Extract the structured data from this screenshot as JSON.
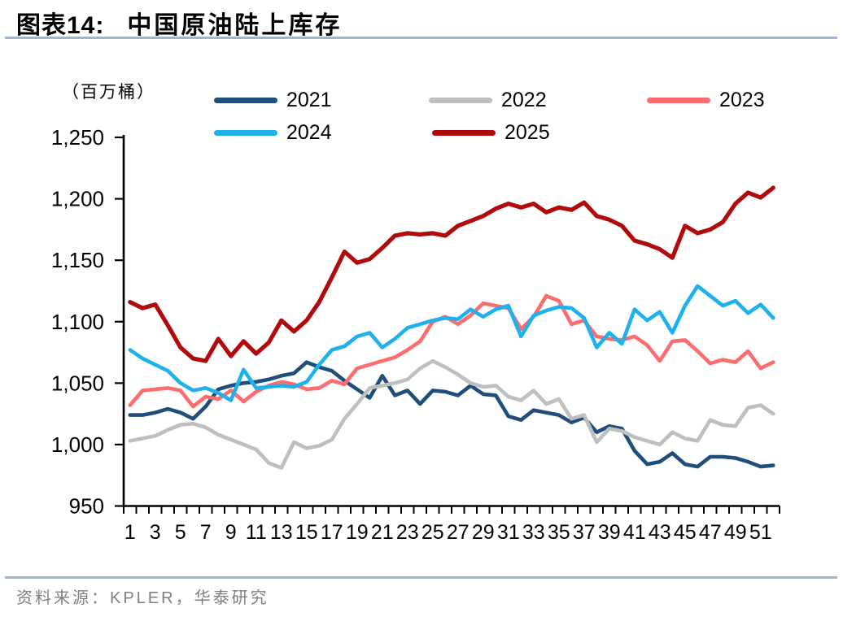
{
  "header": {
    "figure_label": "图表14:",
    "title": "中国原油陆上库存"
  },
  "footer": {
    "source": "资料来源：KPLER，华泰研究"
  },
  "colors": {
    "divider": "#9EB6D6",
    "source_text": "#7F7F7F",
    "axis": "#000000"
  },
  "chart_data": {
    "type": "line",
    "title": "中国原油陆上库存",
    "unit_label": "（百万桶）",
    "xlabel": "",
    "ylabel": "",
    "ylim": [
      950,
      1250
    ],
    "grid": "off",
    "legend_position": "top",
    "y_ticks": [
      950,
      1000,
      1050,
      1100,
      1150,
      1200,
      1250
    ],
    "y_tick_labels": [
      "950",
      "1,000",
      "1,050",
      "1,100",
      "1,150",
      "1,200",
      "1,250"
    ],
    "x": [
      1,
      2,
      3,
      4,
      5,
      6,
      7,
      8,
      9,
      10,
      11,
      12,
      13,
      14,
      15,
      16,
      17,
      18,
      19,
      20,
      21,
      22,
      23,
      24,
      25,
      26,
      27,
      28,
      29,
      30,
      31,
      32,
      33,
      34,
      35,
      36,
      37,
      38,
      39,
      40,
      41,
      42,
      43,
      44,
      45,
      46,
      47,
      48,
      49,
      50,
      51,
      52
    ],
    "x_tick_labels": [
      "1",
      "3",
      "5",
      "7",
      "9",
      "11",
      "13",
      "15",
      "17",
      "19",
      "21",
      "23",
      "25",
      "27",
      "29",
      "31",
      "33",
      "35",
      "37",
      "39",
      "41",
      "43",
      "45",
      "47",
      "49",
      "51"
    ],
    "series": [
      {
        "name": "2021",
        "color": "#1E4E79",
        "values": [
          1024,
          1024,
          1026,
          1029,
          1026,
          1021,
          1031,
          1045,
          1048,
          1050,
          1051,
          1053,
          1056,
          1058,
          1067,
          1063,
          1060,
          1052,
          1045,
          1038,
          1056,
          1040,
          1044,
          1033,
          1044,
          1043,
          1040,
          1048,
          1041,
          1040,
          1023,
          1020,
          1028,
          1026,
          1024,
          1018,
          1022,
          1010,
          1015,
          1013,
          995,
          984,
          986,
          993,
          984,
          982,
          990,
          990,
          989,
          986,
          982,
          983
        ]
      },
      {
        "name": "2022",
        "color": "#BFBFBF",
        "values": [
          1003,
          1005,
          1007,
          1012,
          1016,
          1017,
          1014,
          1008,
          1004,
          1000,
          996,
          985,
          981,
          1002,
          997,
          999,
          1004,
          1021,
          1033,
          1046,
          1048,
          1050,
          1053,
          1062,
          1068,
          1063,
          1057,
          1050,
          1047,
          1048,
          1039,
          1036,
          1044,
          1033,
          1037,
          1021,
          1024,
          1002,
          1013,
          1011,
          1006,
          1003,
          1000,
          1010,
          1005,
          1003,
          1020,
          1016,
          1015,
          1030,
          1032,
          1025
        ]
      },
      {
        "name": "2023",
        "color": "#FB6D6F",
        "values": [
          1032,
          1044,
          1045,
          1046,
          1044,
          1031,
          1039,
          1037,
          1044,
          1035,
          1043,
          1048,
          1051,
          1049,
          1045,
          1046,
          1052,
          1049,
          1062,
          1065,
          1068,
          1071,
          1077,
          1084,
          1100,
          1104,
          1098,
          1105,
          1115,
          1113,
          1111,
          1094,
          1104,
          1121,
          1117,
          1098,
          1101,
          1088,
          1086,
          1085,
          1088,
          1081,
          1068,
          1084,
          1085,
          1076,
          1066,
          1069,
          1067,
          1076,
          1062,
          1067
        ]
      },
      {
        "name": "2024",
        "color": "#1FB1EB",
        "values": [
          1077,
          1070,
          1065,
          1060,
          1050,
          1044,
          1046,
          1042,
          1036,
          1061,
          1046,
          1047,
          1048,
          1047,
          1051,
          1065,
          1077,
          1080,
          1088,
          1091,
          1079,
          1086,
          1095,
          1098,
          1101,
          1103,
          1102,
          1110,
          1104,
          1110,
          1113,
          1088,
          1105,
          1109,
          1112,
          1111,
          1103,
          1079,
          1091,
          1082,
          1110,
          1101,
          1108,
          1091,
          1113,
          1129,
          1121,
          1113,
          1117,
          1107,
          1114,
          1103
        ]
      },
      {
        "name": "2025",
        "color": "#B00A0D",
        "values": [
          1116,
          1111,
          1114,
          1097,
          1079,
          1070,
          1068,
          1086,
          1072,
          1084,
          1074,
          1083,
          1101,
          1092,
          1101,
          1116,
          1136,
          1157,
          1148,
          1151,
          1160,
          1170,
          1172,
          1171,
          1172,
          1170,
          1178,
          1182,
          1186,
          1192,
          1196,
          1193,
          1196,
          1189,
          1193,
          1191,
          1197,
          1186,
          1183,
          1178,
          1166,
          1163,
          1159,
          1152,
          1178,
          1172,
          1175,
          1181,
          1196,
          1205,
          1201,
          1209
        ]
      }
    ]
  }
}
